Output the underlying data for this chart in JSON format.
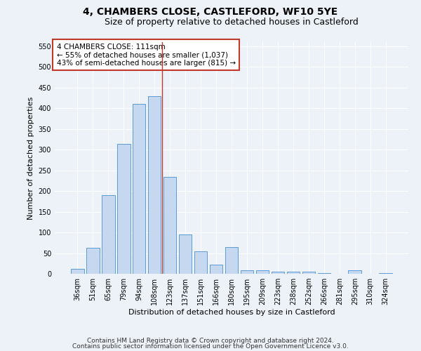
{
  "title": "4, CHAMBERS CLOSE, CASTLEFORD, WF10 5YE",
  "subtitle": "Size of property relative to detached houses in Castleford",
  "xlabel": "Distribution of detached houses by size in Castleford",
  "ylabel": "Number of detached properties",
  "categories": [
    "36sqm",
    "51sqm",
    "65sqm",
    "79sqm",
    "94sqm",
    "108sqm",
    "123sqm",
    "137sqm",
    "151sqm",
    "166sqm",
    "180sqm",
    "195sqm",
    "209sqm",
    "223sqm",
    "238sqm",
    "252sqm",
    "266sqm",
    "281sqm",
    "295sqm",
    "310sqm",
    "324sqm"
  ],
  "values": [
    12,
    62,
    190,
    314,
    410,
    430,
    234,
    95,
    54,
    22,
    65,
    8,
    8,
    5,
    5,
    5,
    2,
    0,
    8,
    0,
    2
  ],
  "bar_color": "#c5d8f0",
  "bar_edge_color": "#5b9bd5",
  "vline_x": 5.5,
  "vline_color": "#c0392b",
  "annotation_text": "4 CHAMBERS CLOSE: 111sqm\n← 55% of detached houses are smaller (1,037)\n43% of semi-detached houses are larger (815) →",
  "annotation_box_color": "#ffffff",
  "annotation_box_edge": "#c0392b",
  "ylim": [
    0,
    560
  ],
  "yticks": [
    0,
    50,
    100,
    150,
    200,
    250,
    300,
    350,
    400,
    450,
    500,
    550
  ],
  "footer1": "Contains HM Land Registry data © Crown copyright and database right 2024.",
  "footer2": "Contains public sector information licensed under the Open Government Licence v3.0.",
  "background_color": "#edf2f9",
  "grid_color": "#ffffff",
  "title_fontsize": 10,
  "subtitle_fontsize": 9,
  "axis_label_fontsize": 8,
  "tick_fontsize": 7,
  "annotation_fontsize": 7.5,
  "footer_fontsize": 6.5
}
